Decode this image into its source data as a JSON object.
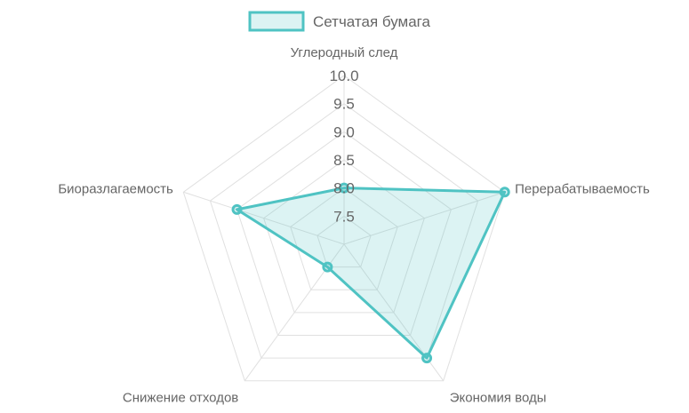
{
  "chart_data": {
    "type": "radar",
    "axes": [
      "Углеродный след",
      "Перерабатываемость",
      "Экономия воды",
      "Снижение отходов",
      "Биоразлагаемость"
    ],
    "tick_labels": [
      "7.5",
      "8.0",
      "8.5",
      "9.0",
      "9.5",
      "10.0"
    ],
    "range": [
      7.0,
      10.0
    ],
    "series": [
      {
        "name": "Сетчатая бумага",
        "values": [
          8.0,
          10.0,
          9.5,
          7.5,
          9.0
        ],
        "stroke_color": "#4fc3c3",
        "fill_color": "rgba(79,195,195,0.2)"
      }
    ],
    "legend": "top-center",
    "grid": true
  }
}
